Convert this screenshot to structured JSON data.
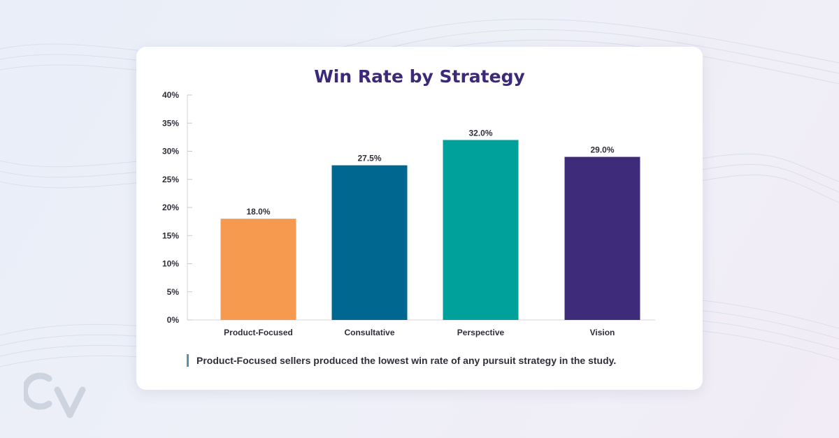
{
  "chart_data": {
    "type": "bar",
    "title": "Win Rate by Strategy",
    "categories": [
      "Product-Focused",
      "Consultative",
      "Perspective",
      "Vision"
    ],
    "values": [
      18.0,
      27.5,
      32.0,
      29.0
    ],
    "value_labels": [
      "18.0%",
      "27.5%",
      "32.0%",
      "29.0%"
    ],
    "colors": [
      "#f59a4f",
      "#006890",
      "#00a19a",
      "#3e2c7a"
    ],
    "ylim": [
      0,
      40
    ],
    "y_ticks": [
      "0%",
      "5%",
      "10%",
      "15%",
      "20%",
      "25%",
      "30%",
      "35%",
      "40%"
    ],
    "grid": false,
    "xlabel": "",
    "ylabel": ""
  },
  "takeaway": "Product-Focused sellers produced the lowest win rate of any pursuit strategy in the study."
}
